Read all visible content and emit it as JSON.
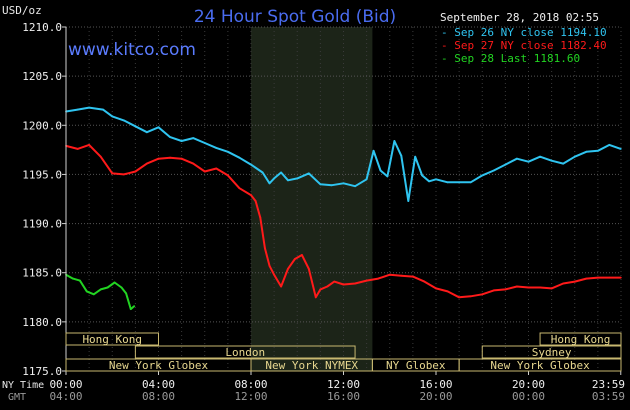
{
  "title": "24 Hour Spot Gold (Bid)",
  "website": "www.kitco.com",
  "unit_label": "USD/oz",
  "timestamp": "September 28, 2018 02:55",
  "tz_labels": {
    "primary": "NY Time",
    "secondary": "GMT"
  },
  "colors": {
    "sep26": "#2fc4f0",
    "sep27": "#ff1a1a",
    "sep28": "#22d422",
    "market_box": "#c8b870",
    "background": "#000000",
    "night_shade": "#1c2418"
  },
  "markets": [
    {
      "name": "Hong Kong",
      "start": 0.0,
      "end": 4.0,
      "row": 0
    },
    {
      "name": "London",
      "start": 3.0,
      "end": 12.5,
      "row": 1
    },
    {
      "name": "New York Globex",
      "start": 0.0,
      "end": 8.0,
      "row": 2
    },
    {
      "name": "New York NYMEX",
      "start": 8.0,
      "end": 13.25,
      "row": 2
    },
    {
      "name": "NY Globex",
      "start": 13.25,
      "end": 17.0,
      "row": 2
    },
    {
      "name": "Hong Kong",
      "start": 20.5,
      "end": 24.0,
      "row": 0
    },
    {
      "name": "Sydney",
      "start": 18.0,
      "end": 24.0,
      "row": 1
    },
    {
      "name": "New York Globex",
      "start": 17.0,
      "end": 24.0,
      "row": 2
    }
  ],
  "chart_data": {
    "type": "line",
    "title": "24 Hour Spot Gold (Bid)",
    "ylabel": "USD/oz",
    "ylim": [
      1175.0,
      1210.0
    ],
    "xlim": [
      0,
      24
    ],
    "yticks": [
      "1175.0",
      "1180.0",
      "1185.0",
      "1190.0",
      "1195.0",
      "1200.0",
      "1205.0",
      "1210.0"
    ],
    "xticks_ny": [
      "00:00",
      "04:00",
      "08:00",
      "12:00",
      "16:00",
      "20:00",
      "23:59"
    ],
    "xticks_gmt": [
      "04:00",
      "08:00",
      "12:00",
      "16:00",
      "20:00",
      "00:00",
      "03:59"
    ],
    "shaded_period": [
      8.0,
      13.25
    ],
    "grid": true,
    "legend_position": "top-right",
    "series": [
      {
        "name": "Sep 26 NY close",
        "value_label": "1194.10",
        "color": "#2fc4f0",
        "x": [
          0,
          0.5,
          1,
          1.6,
          2,
          2.5,
          3,
          3.5,
          4,
          4.5,
          5,
          5.5,
          6,
          6.5,
          7,
          7.5,
          8,
          8.5,
          8.8,
          9,
          9.3,
          9.6,
          10,
          10.5,
          11,
          11.5,
          12,
          12.5,
          13,
          13.3,
          13.6,
          13.9,
          14.2,
          14.5,
          14.8,
          15.1,
          15.4,
          15.7,
          16,
          16.5,
          17,
          17.5,
          18,
          18.5,
          19,
          19.5,
          20,
          20.5,
          21,
          21.5,
          22,
          22.5,
          23,
          23.5,
          23.99
        ],
        "values": [
          1201.4,
          1201.6,
          1201.8,
          1201.6,
          1200.9,
          1200.5,
          1199.9,
          1199.3,
          1199.8,
          1198.8,
          1198.4,
          1198.7,
          1198.2,
          1197.7,
          1197.3,
          1196.7,
          1196.0,
          1195.2,
          1194.1,
          1194.6,
          1195.2,
          1194.4,
          1194.6,
          1195.1,
          1194.0,
          1193.9,
          1194.1,
          1193.8,
          1194.5,
          1197.4,
          1195.4,
          1194.8,
          1198.4,
          1196.9,
          1192.3,
          1196.8,
          1194.9,
          1194.3,
          1194.5,
          1194.2,
          1194.2,
          1194.2,
          1194.9,
          1195.4,
          1196.0,
          1196.6,
          1196.3,
          1196.8,
          1196.4,
          1196.1,
          1196.8,
          1197.3,
          1197.4,
          1198.0,
          1197.6
        ]
      },
      {
        "name": "Sep 27 NY close",
        "value_label": "1182.40",
        "color": "#ff1a1a",
        "x": [
          0,
          0.5,
          1,
          1.5,
          2,
          2.5,
          3,
          3.5,
          4,
          4.5,
          5,
          5.5,
          6,
          6.5,
          7,
          7.5,
          8,
          8.2,
          8.4,
          8.6,
          8.8,
          9,
          9.3,
          9.6,
          9.9,
          10.2,
          10.5,
          10.8,
          11,
          11.3,
          11.6,
          12,
          12.5,
          13,
          13.5,
          14,
          14.5,
          15,
          15.5,
          16,
          16.5,
          17,
          17.5,
          18,
          18.5,
          19,
          19.5,
          20,
          20.5,
          21,
          21.5,
          22,
          22.5,
          23,
          23.5,
          23.99
        ],
        "values": [
          1197.9,
          1197.6,
          1198.0,
          1196.8,
          1195.1,
          1195.0,
          1195.3,
          1196.1,
          1196.6,
          1196.7,
          1196.6,
          1196.1,
          1195.3,
          1195.6,
          1194.9,
          1193.6,
          1192.9,
          1192.3,
          1190.6,
          1187.5,
          1185.7,
          1184.8,
          1183.6,
          1185.4,
          1186.4,
          1186.8,
          1185.4,
          1182.5,
          1183.3,
          1183.6,
          1184.1,
          1183.8,
          1183.9,
          1184.2,
          1184.4,
          1184.8,
          1184.7,
          1184.6,
          1184.1,
          1183.4,
          1183.1,
          1182.5,
          1182.6,
          1182.8,
          1183.2,
          1183.3,
          1183.6,
          1183.5,
          1183.5,
          1183.4,
          1183.9,
          1184.1,
          1184.4,
          1184.5,
          1184.5,
          1184.5
        ]
      },
      {
        "name": "Sep 28 Last",
        "value_label": "1181.60",
        "color": "#22d422",
        "x": [
          0,
          0.3,
          0.6,
          0.9,
          1.2,
          1.5,
          1.8,
          2.1,
          2.4,
          2.6,
          2.8,
          2.95
        ],
        "values": [
          1184.8,
          1184.4,
          1184.2,
          1183.1,
          1182.8,
          1183.3,
          1183.5,
          1184.0,
          1183.5,
          1182.9,
          1181.3,
          1181.6
        ]
      }
    ]
  }
}
